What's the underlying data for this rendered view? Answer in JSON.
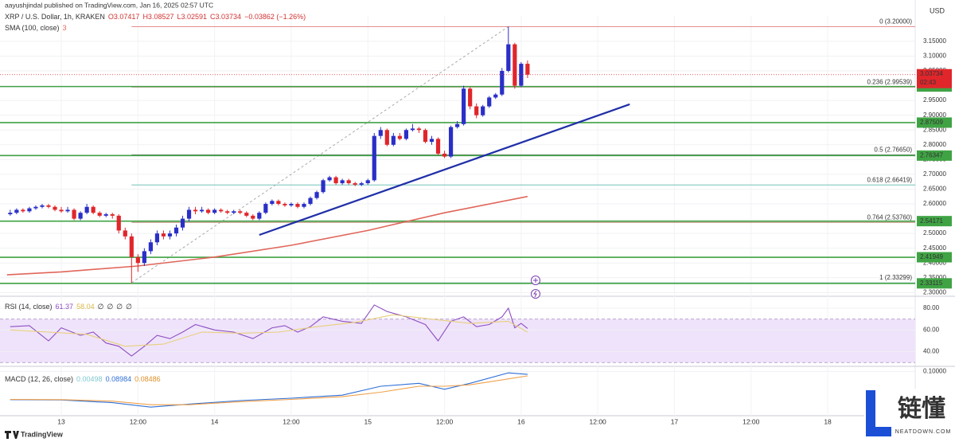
{
  "header": {
    "publisher": "aayushjindal published on TradingView.com, Jan 16, 2025 02:57 UTC",
    "symbol": "XRP / U.S. Dollar, 1h, KRAKEN",
    "quote": [
      "O3.07417",
      "H3.08527",
      "L3.02591",
      "C3.03734",
      "−0.03862 (−1.26%)"
    ],
    "currency": "USD",
    "countdown": "02:43"
  },
  "footer": {
    "brand": "TradingView",
    "watermark": "链懂",
    "watermark_url": "NEATDOWN.COM"
  },
  "chart_data": [
    {
      "type": "candlestick",
      "up_color": "#2a2fc7",
      "down_color": "#e0262b",
      "xlim": [
        -9.6,
        133.7
      ],
      "xticks": [
        {
          "value": 0,
          "label": "13"
        },
        {
          "value": 12,
          "label": "12:00"
        },
        {
          "value": 24,
          "label": "14"
        },
        {
          "value": 36,
          "label": "12:00"
        },
        {
          "value": 48,
          "label": "15"
        },
        {
          "value": 60,
          "label": "12:00"
        },
        {
          "value": 72,
          "label": "16"
        },
        {
          "value": 84,
          "label": "12:00"
        },
        {
          "value": 96,
          "label": "17"
        },
        {
          "value": 108,
          "label": "12:00"
        },
        {
          "value": 120,
          "label": "18"
        }
      ],
      "ylim": [
        2.2875,
        3.236
      ],
      "yticks": [
        {
          "value": 3.15,
          "label": "3.15000"
        },
        {
          "value": 3.1,
          "label": "3.10000"
        },
        {
          "value": 3.05,
          "label": "3.05000"
        },
        {
          "value": 2.95,
          "label": "2.95000"
        },
        {
          "value": 2.9,
          "label": "2.90000"
        },
        {
          "value": 2.85,
          "label": "2.85000"
        },
        {
          "value": 2.8,
          "label": "2.80000"
        },
        {
          "value": 2.75,
          "label": "2.75000"
        },
        {
          "value": 2.7,
          "label": "2.70000"
        },
        {
          "value": 2.65,
          "label": "2.65000"
        },
        {
          "value": 2.6,
          "label": "2.60000"
        },
        {
          "value": 2.5,
          "label": "2.50000"
        },
        {
          "value": 2.45,
          "label": "2.45000"
        },
        {
          "value": 2.4,
          "label": "2.40000"
        },
        {
          "value": 2.35,
          "label": "2.35000"
        },
        {
          "value": 2.3,
          "label": "2.30000"
        }
      ],
      "x": [
        -8,
        -7,
        -6,
        -5,
        -4,
        -3,
        -2,
        -1,
        0,
        1,
        2,
        3,
        4,
        5,
        6,
        7,
        8,
        9,
        10,
        11,
        12,
        13,
        14,
        15,
        16,
        17,
        18,
        19,
        20,
        21,
        22,
        23,
        24,
        25,
        26,
        27,
        28,
        29,
        30,
        31,
        32,
        33,
        34,
        35,
        36,
        37,
        38,
        39,
        40,
        41,
        42,
        43,
        44,
        45,
        46,
        47,
        48,
        49,
        50,
        51,
        52,
        53,
        54,
        55,
        56,
        57,
        58,
        59,
        60,
        61,
        62,
        63,
        64,
        65,
        66,
        67,
        68,
        69,
        70,
        71,
        72,
        73
      ],
      "ohlc": [
        [
          2.565,
          2.58,
          2.56,
          2.57
        ],
        [
          2.57,
          2.585,
          2.565,
          2.58
        ],
        [
          2.58,
          2.585,
          2.57,
          2.575
        ],
        [
          2.575,
          2.59,
          2.57,
          2.585
        ],
        [
          2.585,
          2.595,
          2.58,
          2.59
        ],
        [
          2.59,
          2.6,
          2.585,
          2.595
        ],
        [
          2.595,
          2.6,
          2.585,
          2.59
        ],
        [
          2.59,
          2.595,
          2.575,
          2.58
        ],
        [
          2.58,
          2.59,
          2.57,
          2.575
        ],
        [
          2.575,
          2.59,
          2.57,
          2.58
        ],
        [
          2.58,
          2.585,
          2.545,
          2.55
        ],
        [
          2.55,
          2.575,
          2.545,
          2.57
        ],
        [
          2.57,
          2.6,
          2.565,
          2.59
        ],
        [
          2.59,
          2.595,
          2.565,
          2.57
        ],
        [
          2.57,
          2.575,
          2.555,
          2.56
        ],
        [
          2.56,
          2.57,
          2.555,
          2.565
        ],
        [
          2.565,
          2.57,
          2.55,
          2.56
        ],
        [
          2.56,
          2.565,
          2.5,
          2.51
        ],
        [
          2.51,
          2.52,
          2.48,
          2.49
        ],
        [
          2.49,
          2.5,
          2.33299,
          2.42
        ],
        [
          2.42,
          2.43,
          2.37,
          2.4
        ],
        [
          2.4,
          2.45,
          2.39,
          2.44
        ],
        [
          2.44,
          2.48,
          2.43,
          2.47
        ],
        [
          2.47,
          2.51,
          2.46,
          2.5
        ],
        [
          2.5,
          2.51,
          2.48,
          2.49
        ],
        [
          2.49,
          2.51,
          2.48,
          2.5
        ],
        [
          2.5,
          2.53,
          2.49,
          2.52
        ],
        [
          2.52,
          2.56,
          2.51,
          2.55
        ],
        [
          2.55,
          2.59,
          2.54,
          2.58
        ],
        [
          2.58,
          2.59,
          2.565,
          2.575
        ],
        [
          2.575,
          2.59,
          2.57,
          2.58
        ],
        [
          2.58,
          2.585,
          2.565,
          2.57
        ],
        [
          2.57,
          2.585,
          2.565,
          2.58
        ],
        [
          2.58,
          2.585,
          2.57,
          2.575
        ],
        [
          2.575,
          2.58,
          2.565,
          2.57
        ],
        [
          2.57,
          2.58,
          2.565,
          2.575
        ],
        [
          2.575,
          2.58,
          2.565,
          2.57
        ],
        [
          2.57,
          2.575,
          2.555,
          2.56
        ],
        [
          2.56,
          2.565,
          2.545,
          2.55
        ],
        [
          2.55,
          2.575,
          2.545,
          2.57
        ],
        [
          2.57,
          2.605,
          2.565,
          2.6
        ],
        [
          2.6,
          2.615,
          2.595,
          2.61
        ],
        [
          2.61,
          2.615,
          2.595,
          2.6
        ],
        [
          2.6,
          2.605,
          2.59,
          2.595
        ],
        [
          2.595,
          2.605,
          2.59,
          2.6
        ],
        [
          2.6,
          2.605,
          2.585,
          2.59
        ],
        [
          2.59,
          2.605,
          2.585,
          2.6
        ],
        [
          2.6,
          2.625,
          2.595,
          2.62
        ],
        [
          2.62,
          2.645,
          2.615,
          2.64
        ],
        [
          2.64,
          2.685,
          2.635,
          2.68
        ],
        [
          2.68,
          2.695,
          2.675,
          2.69
        ],
        [
          2.69,
          2.695,
          2.665,
          2.67
        ],
        [
          2.67,
          2.685,
          2.665,
          2.68
        ],
        [
          2.68,
          2.685,
          2.665,
          2.67
        ],
        [
          2.67,
          2.675,
          2.66,
          2.665
        ],
        [
          2.665,
          2.675,
          2.66,
          2.67
        ],
        [
          2.67,
          2.685,
          2.665,
          2.68
        ],
        [
          2.68,
          2.84,
          2.675,
          2.83
        ],
        [
          2.83,
          2.86,
          2.82,
          2.85
        ],
        [
          2.85,
          2.855,
          2.795,
          2.8
        ],
        [
          2.8,
          2.84,
          2.795,
          2.83
        ],
        [
          2.83,
          2.84,
          2.815,
          2.82
        ],
        [
          2.82,
          2.855,
          2.815,
          2.85
        ],
        [
          2.85,
          2.87,
          2.845,
          2.855
        ],
        [
          2.855,
          2.86,
          2.84,
          2.85
        ],
        [
          2.85,
          2.855,
          2.805,
          2.81
        ],
        [
          2.81,
          2.83,
          2.8,
          2.82
        ],
        [
          2.82,
          2.825,
          2.765,
          2.77
        ],
        [
          2.77,
          2.78,
          2.755,
          2.76
        ],
        [
          2.76,
          2.865,
          2.755,
          2.86
        ],
        [
          2.86,
          2.88,
          2.855,
          2.87
        ],
        [
          2.87,
          3.0,
          2.865,
          2.99
        ],
        [
          2.99,
          2.995,
          2.92,
          2.93
        ],
        [
          2.93,
          2.94,
          2.89,
          2.9
        ],
        [
          2.9,
          2.935,
          2.895,
          2.93
        ],
        [
          2.93,
          2.965,
          2.925,
          2.96
        ],
        [
          2.96,
          2.975,
          2.955,
          2.97
        ],
        [
          2.97,
          3.06,
          2.965,
          3.05
        ],
        [
          3.05,
          3.2,
          3.045,
          3.14
        ],
        [
          3.14,
          3.145,
          2.99,
          3.0
        ],
        [
          3.0,
          3.08,
          2.995,
          3.07417
        ],
        [
          3.07417,
          3.08527,
          3.02591,
          3.03734
        ]
      ],
      "series": [
        {
          "name": "SMA (100, close)",
          "value_label": "3",
          "color": "#e0665a",
          "x": [
            -8.5,
            0,
            12,
            24,
            36,
            48,
            60,
            73
          ],
          "values": [
            2.36,
            2.37,
            2.39,
            2.42,
            2.46,
            2.51,
            2.57,
            2.625
          ]
        }
      ],
      "trendline": {
        "color": "#1f2fa8",
        "x": [
          31,
          89
        ],
        "values": [
          2.495,
          2.937
        ]
      },
      "fib": {
        "x": [
          11,
          70
        ],
        "levels": [
          {
            "label": "0 (3.20000)",
            "value": 3.2,
            "color": "#d64545"
          },
          {
            "label": "0.236 (2.99539)",
            "value": 2.99539,
            "color": "#b0504a"
          },
          {
            "label": "0.5 (2.76650)",
            "value": 2.7665,
            "color": "#666666"
          },
          {
            "label": "0.618 (2.66419)",
            "value": 2.66419,
            "color": "#3aa89a"
          },
          {
            "label": "0.764 (2.53760)",
            "value": 2.5376,
            "color": "#a8553c"
          },
          {
            "label": "1 (2.33299)",
            "value": 2.33299,
            "color": "#4a8ab0"
          }
        ]
      },
      "hlines": {
        "color": "#3fa344",
        "values": [
          2.99717,
          2.87509,
          2.76347,
          2.54171,
          2.41949,
          2.33115
        ]
      },
      "last_price": 3.03734
    },
    {
      "type": "line",
      "title": "RSI (14, close)",
      "value_labels": [
        "61.37",
        "58.04",
        "∅",
        "∅",
        "∅",
        "∅"
      ],
      "ylim": [
        28,
        91
      ],
      "yticks": [
        {
          "value": 80,
          "label": "80.00"
        },
        {
          "value": 60,
          "label": "60.00"
        },
        {
          "value": 40,
          "label": "40.00"
        }
      ],
      "band": {
        "range": [
          30,
          70
        ],
        "color": "#efe3fb"
      },
      "series": [
        {
          "name": "RSI",
          "color": "#8e4fc1",
          "x": [
            -8,
            -5,
            -2,
            0,
            3,
            5,
            7,
            9,
            11,
            13,
            15,
            17,
            19,
            21,
            24,
            27,
            30,
            33,
            35,
            37,
            39,
            41,
            44,
            47,
            49,
            51,
            54,
            57,
            59,
            61,
            63,
            65,
            67,
            69,
            70,
            71,
            72,
            73
          ],
          "values": [
            63,
            64,
            50,
            62,
            55,
            58,
            48,
            45,
            36,
            45,
            55,
            52,
            58,
            65,
            60,
            58,
            52,
            62,
            64,
            58,
            63,
            72,
            68,
            66,
            83,
            77,
            72,
            65,
            50,
            68,
            72,
            63,
            65,
            72,
            80,
            62,
            66,
            61.37
          ]
        },
        {
          "name": "RSI MA",
          "color": "#e8d07a",
          "x": [
            -8,
            -2,
            4,
            10,
            16,
            22,
            28,
            34,
            40,
            46,
            52,
            58,
            64,
            70,
            73
          ],
          "values": [
            60,
            58,
            56,
            45,
            47,
            58,
            57,
            58,
            63,
            67,
            74,
            70,
            66,
            68,
            58.04
          ]
        }
      ]
    },
    {
      "type": "line",
      "title": "MACD (12, 26, close)",
      "value_labels": [
        "0.00498",
        "0.08984",
        "0.08486"
      ],
      "ylim": [
        -0.049,
        0.117
      ],
      "yticks": [
        {
          "value": 0.1,
          "label": "0.10000"
        }
      ],
      "series": [
        {
          "name": "MACD",
          "color": "#2f6fd6",
          "x": [
            -8,
            0,
            8,
            14,
            20,
            28,
            36,
            44,
            50,
            56,
            60,
            64,
            70,
            73
          ],
          "values": [
            0.005,
            0.004,
            -0.005,
            -0.02,
            -0.01,
            0.002,
            0.01,
            0.02,
            0.05,
            0.06,
            0.04,
            0.06,
            0.095,
            0.08984
          ]
        },
        {
          "name": "Signal",
          "color": "#f0a04a",
          "x": [
            -8,
            0,
            8,
            14,
            20,
            28,
            36,
            44,
            50,
            56,
            60,
            64,
            70,
            73
          ],
          "values": [
            0.006,
            0.005,
            0,
            -0.012,
            -0.012,
            -0.002,
            0.006,
            0.015,
            0.03,
            0.05,
            0.05,
            0.055,
            0.075,
            0.08486
          ]
        }
      ]
    }
  ]
}
